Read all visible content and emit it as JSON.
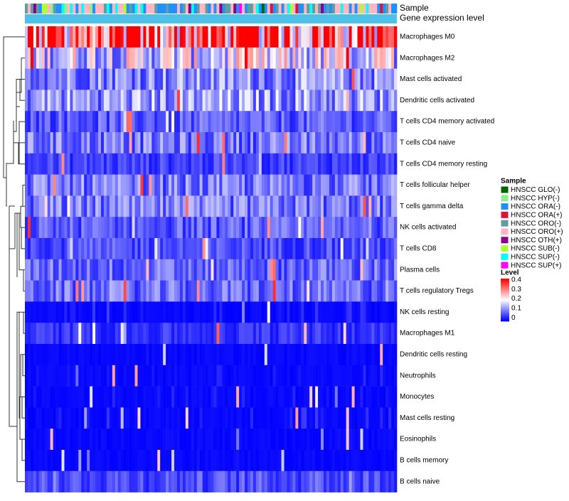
{
  "chart_data": {
    "type": "heatmap",
    "title": "",
    "annotation_rows": [
      "Sample",
      "Gene expression level"
    ],
    "rows": [
      "Macrophages M0",
      "Macrophages M2",
      "Mast cells activated",
      "Dendritic cells activated",
      "T cells CD4 memory activated",
      "T cells CD4 naive",
      "T cells CD4 memory resting",
      "T cells follicular helper",
      "T cells gamma delta",
      "NK cells activated",
      "T cells CD8",
      "Plasma cells",
      "T cells regulatory  Tregs",
      "NK cells resting",
      "Macrophages M1",
      "Dendritic cells resting",
      "Neutrophils",
      "Monocytes",
      "Mast cells resting",
      "Eosinophils",
      "B cells memory",
      "B cells naive"
    ],
    "row_mean_level": [
      0.33,
      0.17,
      0.11,
      0.12,
      0.07,
      0.09,
      0.05,
      0.09,
      0.09,
      0.07,
      0.06,
      0.08,
      0.08,
      0.03,
      0.04,
      0.01,
      0.02,
      0.02,
      0.03,
      0.01,
      0.01,
      0.06
    ],
    "n_samples": 132,
    "sample_legend": {
      "title": "Sample",
      "items": [
        {
          "label": "HNSCC GLO(-)",
          "color": "#006400"
        },
        {
          "label": "HNSCC HYP(-)",
          "color": "#90EE90"
        },
        {
          "label": "HNSCC ORA(-)",
          "color": "#1E90FF"
        },
        {
          "label": "HNSCC ORA(+)",
          "color": "#DC143C"
        },
        {
          "label": "HNSCC ORO(-)",
          "color": "#5F9EA0"
        },
        {
          "label": "HNSCC ORO(+)",
          "color": "#FFB6C1"
        },
        {
          "label": "HNSCC OTH(+)",
          "color": "#8B008B"
        },
        {
          "label": "HNSCC SUB(-)",
          "color": "#ADFF2F"
        },
        {
          "label": "HNSCC SUP(-)",
          "color": "#00FFFF"
        },
        {
          "label": "HNSCC SUP(+)",
          "color": "#FF00FF"
        }
      ]
    },
    "level_legend": {
      "title": "Level",
      "range": [
        0,
        0.4
      ],
      "ticks": [
        "0.4",
        "0.3",
        "0.2",
        "0.1",
        "0"
      ],
      "colors": {
        "low": "#0000FF",
        "mid": "#FFFFFF",
        "high": "#FF0000"
      }
    },
    "gene_expression_level_color": "#4EC1E8"
  }
}
